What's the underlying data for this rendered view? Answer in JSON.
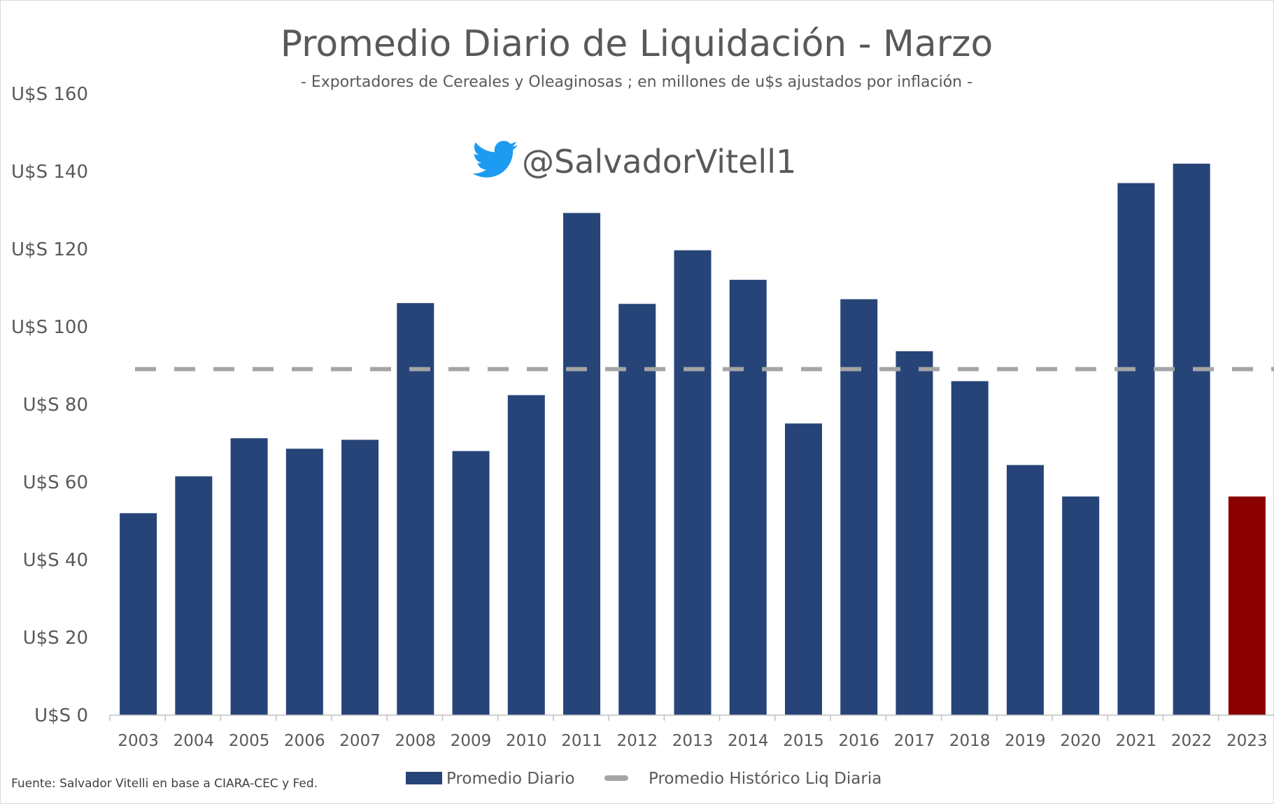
{
  "chart_data": {
    "type": "bar",
    "title": "Promedio Diario de Liquidación - Marzo",
    "subtitle": "- Exportadores de Cereales y Oleaginosas ; en millones de u$s ajustados por inflación -",
    "watermark": "@SalvadorVitell1",
    "source": "Fuente: Salvador Vitelli en base a CIARA-CEC y Fed.",
    "categories": [
      "2003",
      "2004",
      "2005",
      "2006",
      "2007",
      "2008",
      "2009",
      "2010",
      "2011",
      "2012",
      "2013",
      "2014",
      "2015",
      "2016",
      "2017",
      "2018",
      "2019",
      "2020",
      "2021",
      "2022",
      "2023"
    ],
    "series": [
      {
        "name": "Promedio Diario",
        "type": "bar",
        "color": "#264478",
        "highlight_color": "#8b0000",
        "highlight_category": "2023",
        "values": [
          52,
          61.5,
          71.3,
          68.6,
          70.9,
          106.1,
          68,
          82.4,
          129.3,
          105.9,
          119.7,
          112.1,
          75.1,
          107.1,
          93.7,
          86,
          64.4,
          56.3,
          137,
          142,
          56.3
        ]
      },
      {
        "name": "Promedio Histórico Liq Diaria",
        "type": "line",
        "style": "dashed",
        "color": "#a5a5a5",
        "value": 89.1
      }
    ],
    "yaxis": {
      "min": 0,
      "max": 160,
      "step": 20,
      "tick_prefix": "U$S "
    },
    "grid": false,
    "legend_position": "bottom",
    "icon": "twitter-bird-icon",
    "icon_color": "#1d9bf0"
  }
}
